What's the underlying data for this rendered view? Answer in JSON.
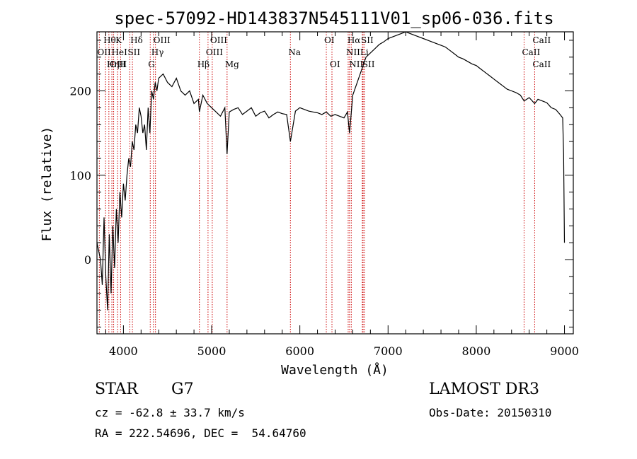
{
  "chart_data": {
    "type": "line",
    "title": "spec-57092-HD143837N545111V01_sp06-036.fits",
    "xlabel": "Wavelength (Å)",
    "ylabel": "Flux (relative)",
    "xlim": [
      3700,
      9100
    ],
    "ylim": [
      -88,
      270
    ],
    "xticks": [
      4000,
      5000,
      6000,
      7000,
      8000,
      9000
    ],
    "xtick_labels": [
      "4000",
      "5000",
      "6000",
      "7000",
      "8000",
      "9000"
    ],
    "yticks": [
      0,
      100,
      200
    ],
    "ytick_labels": [
      "0",
      "100",
      "200"
    ],
    "grid": false,
    "series_color": "#000000",
    "line_marker_color": "#cc0000",
    "spectrum": {
      "x": [
        3700,
        3720,
        3740,
        3760,
        3780,
        3800,
        3820,
        3840,
        3860,
        3880,
        3900,
        3920,
        3940,
        3960,
        3980,
        4000,
        4020,
        4040,
        4060,
        4080,
        4100,
        4120,
        4140,
        4160,
        4180,
        4200,
        4220,
        4240,
        4260,
        4280,
        4300,
        4320,
        4340,
        4360,
        4380,
        4400,
        4450,
        4500,
        4550,
        4600,
        4650,
        4700,
        4750,
        4800,
        4850,
        4861,
        4900,
        4950,
        5000,
        5050,
        5100,
        5150,
        5175,
        5200,
        5250,
        5300,
        5350,
        5400,
        5450,
        5500,
        5550,
        5600,
        5650,
        5700,
        5750,
        5800,
        5850,
        5893,
        5950,
        6000,
        6050,
        6100,
        6150,
        6200,
        6250,
        6300,
        6350,
        6400,
        6450,
        6500,
        6540,
        6563,
        6580,
        6600,
        6650,
        6700,
        6750,
        6800,
        6850,
        6900,
        6950,
        7000,
        7050,
        7100,
        7150,
        7200,
        7250,
        7300,
        7350,
        7400,
        7450,
        7500,
        7550,
        7600,
        7650,
        7700,
        7750,
        7800,
        7850,
        7900,
        7950,
        8000,
        8050,
        8100,
        8150,
        8200,
        8250,
        8300,
        8350,
        8400,
        8450,
        8500,
        8542,
        8600,
        8662,
        8700,
        8750,
        8800,
        8850,
        8900,
        8950,
        8980,
        8990,
        9000
      ],
      "y": [
        20,
        10,
        0,
        -30,
        50,
        -20,
        -60,
        30,
        -40,
        40,
        -10,
        60,
        20,
        80,
        50,
        90,
        70,
        100,
        120,
        110,
        140,
        130,
        160,
        150,
        180,
        170,
        150,
        160,
        130,
        180,
        150,
        200,
        190,
        210,
        200,
        215,
        220,
        210,
        205,
        215,
        200,
        195,
        200,
        185,
        190,
        175,
        195,
        185,
        180,
        175,
        170,
        180,
        125,
        175,
        178,
        180,
        172,
        176,
        180,
        170,
        174,
        176,
        168,
        172,
        175,
        173,
        172,
        140,
        176,
        180,
        178,
        176,
        175,
        174,
        172,
        175,
        170,
        172,
        170,
        168,
        175,
        150,
        170,
        195,
        210,
        225,
        240,
        245,
        250,
        255,
        258,
        262,
        264,
        266,
        268,
        270,
        268,
        266,
        264,
        262,
        260,
        258,
        256,
        254,
        252,
        248,
        244,
        240,
        238,
        235,
        232,
        230,
        226,
        222,
        218,
        214,
        210,
        206,
        202,
        200,
        198,
        195,
        188,
        192,
        185,
        190,
        188,
        186,
        180,
        178,
        172,
        168,
        125,
        20
      ]
    },
    "lines": [
      {
        "name": "Hθ",
        "x": 3797,
        "row": 1
      },
      {
        "name": "OII",
        "x": 3727,
        "row": 2
      },
      {
        "name": "OIII",
        "x": 3869,
        "row": 3
      },
      {
        "name": "K",
        "x": 3934,
        "row": 1
      },
      {
        "name": "HeI",
        "x": 3889,
        "row": 2
      },
      {
        "name": "Hη",
        "x": 3835,
        "row": 3
      },
      {
        "name": "Hδ",
        "x": 4102,
        "row": 1
      },
      {
        "name": "SII",
        "x": 4072,
        "row": 2
      },
      {
        "name": "H",
        "x": 3968,
        "row": 3
      },
      {
        "name": "OIII",
        "x": 4363,
        "row": 1
      },
      {
        "name": "Hγ",
        "x": 4340,
        "row": 2
      },
      {
        "name": "G",
        "x": 4304,
        "row": 3
      },
      {
        "name": "Hβ",
        "x": 4861,
        "row": 3
      },
      {
        "name": "OIII",
        "x": 5007,
        "row": 1
      },
      {
        "name": "OIII",
        "x": 4959,
        "row": 2
      },
      {
        "name": "Mg",
        "x": 5175,
        "row": 3
      },
      {
        "name": "Na",
        "x": 5893,
        "row": 2
      },
      {
        "name": "OI",
        "x": 6300,
        "row": 1
      },
      {
        "name": "OI",
        "x": 6364,
        "row": 3
      },
      {
        "name": "Hα",
        "x": 6563,
        "row": 1
      },
      {
        "name": "SII",
        "x": 6717,
        "row": 1
      },
      {
        "name": "NII",
        "x": 6548,
        "row": 2
      },
      {
        "name": "Li",
        "x": 6708,
        "row": 2
      },
      {
        "name": "NII",
        "x": 6583,
        "row": 3
      },
      {
        "name": "SII",
        "x": 6731,
        "row": 3
      },
      {
        "name": "CaII",
        "x": 8662,
        "row": 1
      },
      {
        "name": "CaII",
        "x": 8542,
        "row": 2
      },
      {
        "name": "CaII",
        "x": 8662,
        "row": 3
      }
    ]
  },
  "info": {
    "class_label": "STAR",
    "subclass": "G7",
    "survey": "LAMOST DR3",
    "redshift": "cz = -62.8 ± 33.7 km/s",
    "obs_date": "Obs-Date: 20150310",
    "coords": "RA = 222.54696, DEC =  54.64760"
  }
}
